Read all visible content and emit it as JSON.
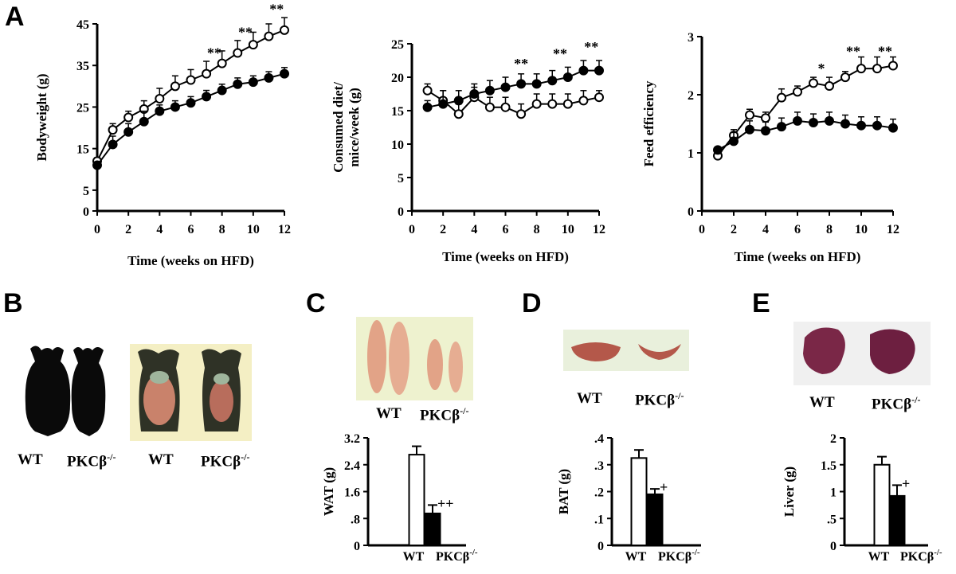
{
  "panels": {
    "a": "A",
    "b": "B",
    "c": "C",
    "d": "D",
    "e": "E"
  },
  "chart_data": [
    {
      "id": "bodyweight",
      "type": "line",
      "xlabel": "Time (weeks on HFD)",
      "ylabel": "Bodyweight (g)",
      "xlim": [
        0,
        12
      ],
      "ylim": [
        0,
        45
      ],
      "xticks": [
        "0",
        "2",
        "4",
        "6",
        "8",
        "10",
        "12"
      ],
      "yticks": [
        "0",
        "5",
        "15",
        "25",
        "35",
        "45"
      ],
      "series": [
        {
          "marker": "open",
          "x": [
            0,
            1,
            2,
            3,
            4,
            5,
            6,
            7,
            8,
            9,
            10,
            11,
            12
          ],
          "values": [
            12,
            19.5,
            22.5,
            24.5,
            27,
            30,
            31.5,
            33,
            35.5,
            38,
            40,
            42,
            43.5
          ],
          "err": [
            0.8,
            1.5,
            1.5,
            2,
            2.5,
            2.5,
            2.5,
            3,
            3,
            3,
            3,
            3,
            3
          ]
        },
        {
          "marker": "filled",
          "x": [
            0,
            1,
            2,
            3,
            4,
            5,
            6,
            7,
            8,
            9,
            10,
            11,
            12
          ],
          "values": [
            11,
            16,
            19,
            21.5,
            24,
            25,
            26,
            27.5,
            29,
            30.5,
            31,
            32,
            33
          ],
          "err": [
            0.8,
            2,
            2,
            2.5,
            1.5,
            1.5,
            1.5,
            1.5,
            1.5,
            1.5,
            1.5,
            1.5,
            1.5
          ]
        }
      ],
      "annotations": [
        {
          "x": 7.5,
          "y": 38,
          "text": "**"
        },
        {
          "x": 9.5,
          "y": 43,
          "text": "**"
        },
        {
          "x": 11.5,
          "y": 48.5,
          "text": "**"
        }
      ]
    },
    {
      "id": "consumed_diet",
      "type": "line",
      "xlabel": "Time (weeks on HFD)",
      "ylabel": "Consumed diet/ mice/week (g)",
      "xlim": [
        0,
        12
      ],
      "ylim": [
        0,
        25
      ],
      "xticks": [
        "0",
        "2",
        "4",
        "6",
        "8",
        "10",
        "12"
      ],
      "yticks": [
        "0",
        "5",
        "10",
        "15",
        "20",
        "25"
      ],
      "series": [
        {
          "marker": "open",
          "x": [
            1,
            2,
            3,
            4,
            5,
            6,
            7,
            8,
            9,
            10,
            11,
            12
          ],
          "values": [
            18,
            16.5,
            14.5,
            17,
            15.5,
            15.5,
            14.5,
            16,
            16,
            16,
            16.5,
            17
          ],
          "err": [
            1,
            1.5,
            1.5,
            1.5,
            1.5,
            1.5,
            1.5,
            1.5,
            1.5,
            1.5,
            1.5,
            1
          ]
        },
        {
          "marker": "filled",
          "x": [
            1,
            2,
            3,
            4,
            5,
            6,
            7,
            8,
            9,
            10,
            11,
            12
          ],
          "values": [
            15.5,
            16,
            16.5,
            17.5,
            18,
            18.5,
            19,
            19,
            19.5,
            20,
            21,
            21
          ],
          "err": [
            1,
            2,
            1.5,
            1.5,
            1.5,
            1.5,
            1.5,
            1.5,
            1.5,
            1.5,
            1.5,
            1.5
          ]
        }
      ],
      "annotations": [
        {
          "x": 7,
          "y": 22,
          "text": "**"
        },
        {
          "x": 9.5,
          "y": 23.5,
          "text": "**"
        },
        {
          "x": 11.5,
          "y": 24.5,
          "text": "**"
        }
      ]
    },
    {
      "id": "feed_efficiency",
      "type": "line",
      "xlabel": "Time (weeks on HFD)",
      "ylabel": "Feed efficiency",
      "xlim": [
        0,
        12
      ],
      "ylim": [
        0,
        3
      ],
      "xticks": [
        "0",
        "2",
        "4",
        "6",
        "8",
        "10",
        "12"
      ],
      "yticks": [
        "0",
        "1",
        "2",
        "3"
      ],
      "series": [
        {
          "marker": "open",
          "x": [
            1,
            2,
            3,
            4,
            5,
            6,
            7,
            8,
            9,
            10,
            11,
            12
          ],
          "values": [
            0.95,
            1.3,
            1.65,
            1.6,
            1.95,
            2.05,
            2.2,
            2.15,
            2.3,
            2.45,
            2.45,
            2.5
          ],
          "err": [
            0.05,
            0.1,
            0.1,
            0.1,
            0.15,
            0.1,
            0.1,
            0.15,
            0.1,
            0.2,
            0.2,
            0.15
          ]
        },
        {
          "marker": "filled",
          "x": [
            1,
            2,
            3,
            4,
            5,
            6,
            7,
            8,
            9,
            10,
            11,
            12
          ],
          "values": [
            1.05,
            1.2,
            1.4,
            1.38,
            1.45,
            1.55,
            1.52,
            1.55,
            1.5,
            1.47,
            1.47,
            1.43
          ],
          "err": [
            0.05,
            0.15,
            0.15,
            0.15,
            0.15,
            0.15,
            0.15,
            0.15,
            0.15,
            0.15,
            0.15,
            0.15
          ]
        }
      ],
      "annotations": [
        {
          "x": 7.5,
          "y": 2.45,
          "text": "*"
        },
        {
          "x": 9.5,
          "y": 2.75,
          "text": "**"
        },
        {
          "x": 11.5,
          "y": 2.75,
          "text": "**"
        }
      ]
    },
    {
      "id": "wat",
      "type": "bar",
      "categories": [
        "WT",
        "PKCβ-/-"
      ],
      "values": [
        2.7,
        0.95
      ],
      "err": [
        0.25,
        0.25
      ],
      "ylabel": "WAT (g)",
      "ylim": [
        0,
        3.2
      ],
      "yticks": [
        "0",
        ".8",
        "1.6",
        "2.4",
        "3.2"
      ],
      "annotation": "++"
    },
    {
      "id": "bat",
      "type": "bar",
      "categories": [
        "WT",
        "PKCβ-/-"
      ],
      "values": [
        0.325,
        0.19
      ],
      "err": [
        0.03,
        0.02
      ],
      "ylabel": "BAT (g)",
      "ylim": [
        0,
        0.4
      ],
      "yticks": [
        "0",
        ".1",
        ".2",
        ".3",
        ".4"
      ],
      "annotation": "+"
    },
    {
      "id": "liver",
      "type": "bar",
      "categories": [
        "WT",
        "PKCβ-/-"
      ],
      "values": [
        1.5,
        0.92
      ],
      "err": [
        0.15,
        0.2
      ],
      "ylabel": "Liver (g)",
      "ylim": [
        0,
        2
      ],
      "yticks": [
        "0",
        ".5",
        "1",
        "1.5",
        "2"
      ],
      "annotation": "+"
    }
  ],
  "photos": {
    "b_captions": [
      "WT",
      "PKCβ-/-",
      "WT",
      "PKCβ-/-"
    ],
    "c_captions": [
      "WT",
      "PKCβ-/-"
    ],
    "d_captions": [
      "WT",
      "PKCβ-/-"
    ],
    "e_captions": [
      "WT",
      "PKCβ-/-"
    ]
  },
  "colors": {
    "ink": "#000000",
    "open_fill": "#ffffff",
    "photo_bg": "#f3f2d6",
    "tissue_pink": "#e8a98f",
    "bat_red": "#b0574a",
    "liver_purple": "#7c2a48"
  }
}
